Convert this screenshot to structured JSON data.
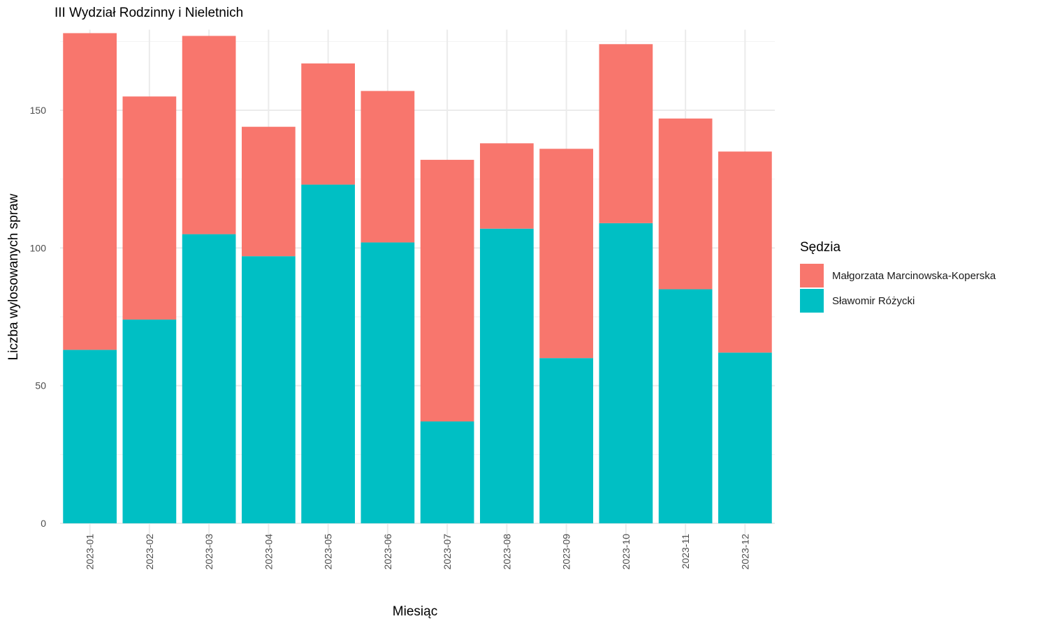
{
  "chart_data": {
    "type": "bar",
    "stacked": true,
    "title": "III Wydział Rodzinny i Nieletnich",
    "xlabel": "Miesiąc",
    "ylabel": "Liczba wylosowanych spraw",
    "categories": [
      "2023-01",
      "2023-02",
      "2023-03",
      "2023-04",
      "2023-05",
      "2023-06",
      "2023-07",
      "2023-08",
      "2023-09",
      "2023-10",
      "2023-11",
      "2023-12"
    ],
    "series": [
      {
        "name": "Sławomir Różycki",
        "color": "#00BFC4",
        "values": [
          63,
          74,
          105,
          97,
          123,
          102,
          37,
          107,
          60,
          109,
          85,
          62
        ]
      },
      {
        "name": "Małgorzata Marcinowska-Koperska",
        "color": "#F8766D",
        "values": [
          115,
          81,
          72,
          47,
          44,
          55,
          95,
          31,
          76,
          65,
          62,
          73
        ]
      }
    ],
    "ylim": [
      0,
      178
    ],
    "yticks": [
      0,
      50,
      100,
      150
    ],
    "grid": true,
    "legend": {
      "title": "Sędzia",
      "position": "right",
      "entries": [
        {
          "label": "Małgorzata Marcinowska-Koperska",
          "color": "#F8766D"
        },
        {
          "label": "Sławomir Różycki",
          "color": "#00BFC4"
        }
      ]
    }
  }
}
